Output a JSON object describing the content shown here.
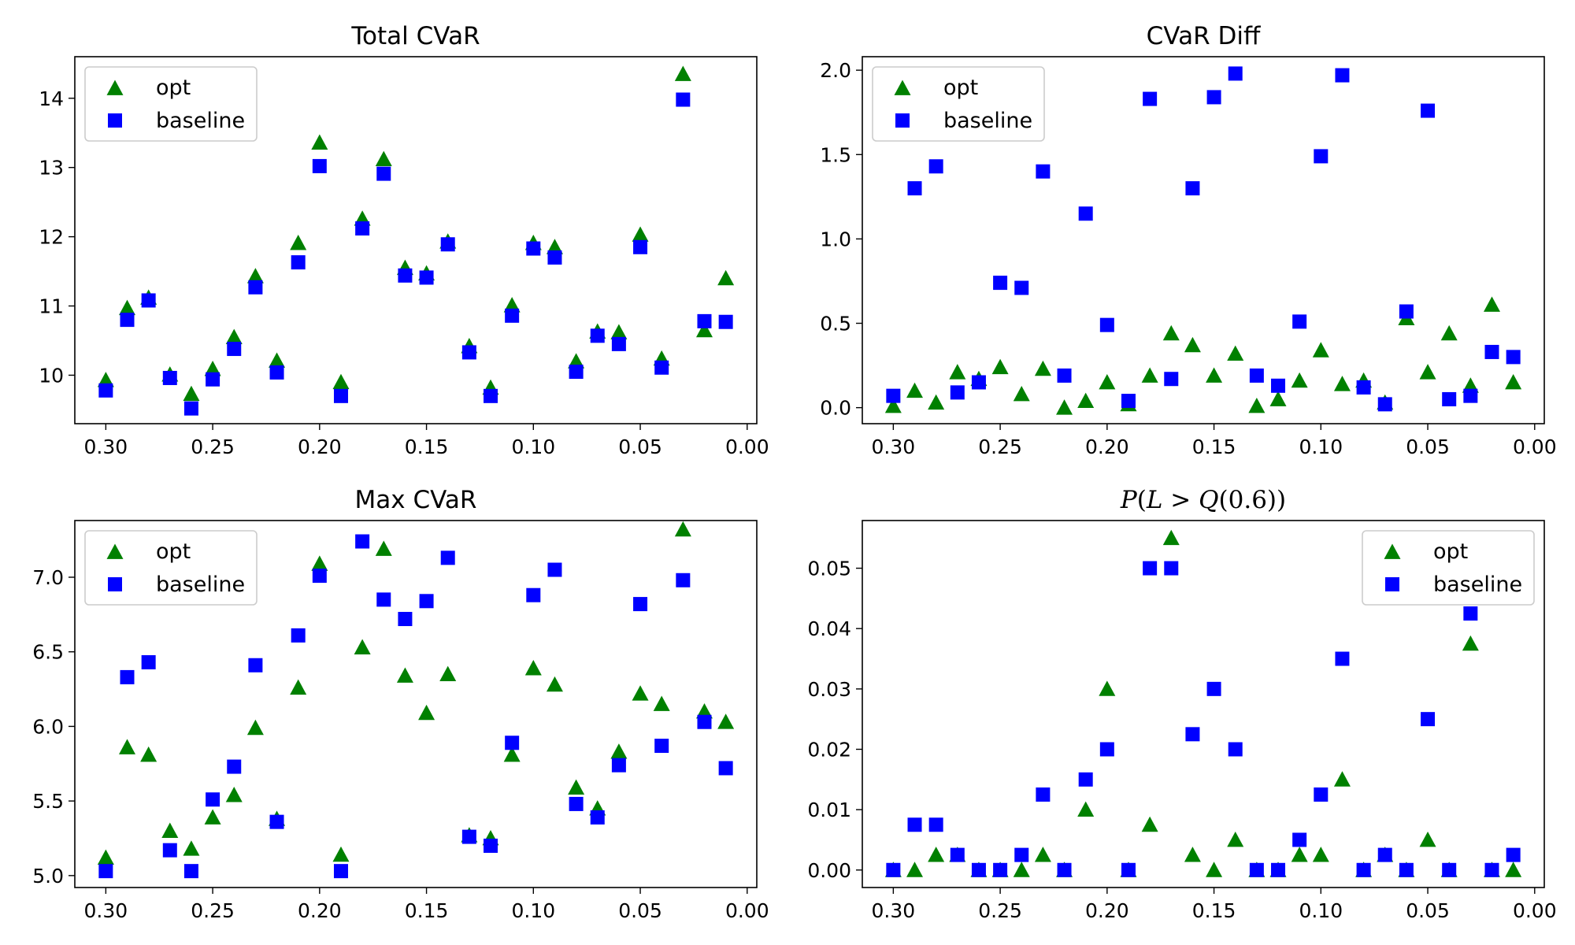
{
  "figure_title": "",
  "chart_data": [
    {
      "type": "scatter",
      "title": "Total CVaR",
      "title_math": false,
      "xlabel": "",
      "ylabel": "",
      "xlim": [
        0.3145,
        -0.0045
      ],
      "ylim": [
        9.3,
        14.6
      ],
      "x_ticks": [
        "0.30",
        "0.25",
        "0.20",
        "0.15",
        "0.10",
        "0.05",
        "0.00"
      ],
      "y_ticks": [
        "10",
        "11",
        "12",
        "13",
        "14"
      ],
      "legend": {
        "position": "upper left",
        "entries": [
          "opt",
          "baseline"
        ]
      },
      "grid": false,
      "series": [
        {
          "name": "opt",
          "marker": "triangle",
          "color": "#008000",
          "x": [
            0.3,
            0.29,
            0.28,
            0.27,
            0.26,
            0.25,
            0.24,
            0.23,
            0.22,
            0.21,
            0.2,
            0.19,
            0.18,
            0.17,
            0.16,
            0.15,
            0.14,
            0.13,
            0.12,
            0.11,
            0.1,
            0.09,
            0.08,
            0.07,
            0.06,
            0.05,
            0.04,
            0.03,
            0.02,
            0.01
          ],
          "y": [
            9.93,
            10.97,
            11.12,
            10.01,
            9.73,
            10.09,
            10.55,
            11.43,
            10.21,
            11.91,
            13.36,
            9.9,
            12.26,
            13.12,
            11.55,
            11.47,
            11.93,
            10.42,
            9.82,
            11.01,
            11.91,
            11.85,
            10.2,
            10.63,
            10.62,
            12.03,
            10.24,
            14.35,
            10.65,
            11.4
          ]
        },
        {
          "name": "baseline",
          "marker": "square",
          "color": "#0000ff",
          "x": [
            0.3,
            0.29,
            0.28,
            0.27,
            0.26,
            0.25,
            0.24,
            0.23,
            0.22,
            0.21,
            0.2,
            0.19,
            0.18,
            0.17,
            0.16,
            0.15,
            0.14,
            0.13,
            0.12,
            0.11,
            0.1,
            0.09,
            0.08,
            0.07,
            0.06,
            0.05,
            0.04,
            0.03,
            0.02,
            0.01
          ],
          "y": [
            9.78,
            10.8,
            11.08,
            9.96,
            9.52,
            9.94,
            10.38,
            11.27,
            10.04,
            11.63,
            13.02,
            9.7,
            12.12,
            12.91,
            11.44,
            11.41,
            11.89,
            10.33,
            9.7,
            10.86,
            11.83,
            11.7,
            10.05,
            10.57,
            10.45,
            11.85,
            10.11,
            13.98,
            10.78,
            10.77
          ]
        }
      ]
    },
    {
      "type": "scatter",
      "title": "CVaR Diff",
      "title_math": false,
      "xlabel": "",
      "ylabel": "",
      "xlim": [
        0.3145,
        -0.0045
      ],
      "ylim": [
        -0.095,
        2.08
      ],
      "x_ticks": [
        "0.30",
        "0.25",
        "0.20",
        "0.15",
        "0.10",
        "0.05",
        "0.00"
      ],
      "y_ticks": [
        "0.0",
        "0.5",
        "1.0",
        "1.5",
        "2.0"
      ],
      "legend": {
        "position": "upper left",
        "entries": [
          "opt",
          "baseline"
        ]
      },
      "grid": false,
      "series": [
        {
          "name": "opt",
          "marker": "triangle",
          "color": "#008000",
          "x": [
            0.3,
            0.29,
            0.28,
            0.27,
            0.26,
            0.25,
            0.24,
            0.23,
            0.22,
            0.21,
            0.2,
            0.19,
            0.18,
            0.17,
            0.16,
            0.15,
            0.14,
            0.13,
            0.12,
            0.11,
            0.1,
            0.09,
            0.08,
            0.07,
            0.06,
            0.05,
            0.04,
            0.03,
            0.02,
            0.01
          ],
          "y": [
            0.01,
            0.1,
            0.03,
            0.21,
            0.17,
            0.24,
            0.08,
            0.23,
            0.0,
            0.04,
            0.15,
            0.02,
            0.19,
            0.44,
            0.37,
            0.19,
            0.32,
            0.01,
            0.05,
            0.16,
            0.34,
            0.14,
            0.16,
            0.03,
            0.53,
            0.21,
            0.44,
            0.13,
            0.61,
            0.15
          ]
        },
        {
          "name": "baseline",
          "marker": "square",
          "color": "#0000ff",
          "x": [
            0.3,
            0.29,
            0.28,
            0.27,
            0.26,
            0.25,
            0.24,
            0.23,
            0.22,
            0.21,
            0.2,
            0.19,
            0.18,
            0.17,
            0.16,
            0.15,
            0.14,
            0.13,
            0.12,
            0.11,
            0.1,
            0.09,
            0.08,
            0.07,
            0.06,
            0.05,
            0.04,
            0.03,
            0.02,
            0.01
          ],
          "y": [
            0.07,
            1.3,
            1.43,
            0.09,
            0.15,
            0.74,
            0.71,
            1.4,
            0.19,
            1.15,
            0.49,
            0.04,
            1.83,
            0.17,
            1.3,
            1.84,
            1.98,
            0.19,
            0.13,
            0.51,
            1.49,
            1.97,
            0.12,
            0.02,
            0.57,
            1.76,
            0.05,
            0.07,
            0.33,
            0.3
          ]
        }
      ]
    },
    {
      "type": "scatter",
      "title": "Max CVaR",
      "title_math": false,
      "xlabel": "",
      "ylabel": "",
      "xlim": [
        0.3145,
        -0.0045
      ],
      "ylim": [
        4.92,
        7.38
      ],
      "x_ticks": [
        "0.30",
        "0.25",
        "0.20",
        "0.15",
        "0.10",
        "0.05",
        "0.00"
      ],
      "y_ticks": [
        "5.0",
        "5.5",
        "6.0",
        "6.5",
        "7.0"
      ],
      "legend": {
        "position": "upper left",
        "entries": [
          "opt",
          "baseline"
        ]
      },
      "grid": false,
      "series": [
        {
          "name": "opt",
          "marker": "triangle",
          "color": "#008000",
          "x": [
            0.3,
            0.29,
            0.28,
            0.27,
            0.26,
            0.25,
            0.24,
            0.23,
            0.22,
            0.21,
            0.2,
            0.19,
            0.18,
            0.17,
            0.16,
            0.15,
            0.14,
            0.13,
            0.12,
            0.11,
            0.1,
            0.09,
            0.08,
            0.07,
            0.06,
            0.05,
            0.04,
            0.03,
            0.02,
            0.01
          ],
          "y": [
            5.12,
            5.86,
            5.81,
            5.3,
            5.18,
            5.39,
            5.54,
            5.99,
            5.38,
            6.26,
            7.09,
            5.14,
            6.53,
            7.19,
            6.34,
            6.09,
            6.35,
            5.27,
            5.25,
            5.81,
            6.39,
            6.28,
            5.59,
            5.45,
            5.83,
            6.22,
            6.15,
            7.32,
            6.1,
            6.03
          ]
        },
        {
          "name": "baseline",
          "marker": "square",
          "color": "#0000ff",
          "x": [
            0.3,
            0.29,
            0.28,
            0.27,
            0.26,
            0.25,
            0.24,
            0.23,
            0.22,
            0.21,
            0.2,
            0.19,
            0.18,
            0.17,
            0.16,
            0.15,
            0.14,
            0.13,
            0.12,
            0.11,
            0.1,
            0.09,
            0.08,
            0.07,
            0.06,
            0.05,
            0.04,
            0.03,
            0.02,
            0.01
          ],
          "y": [
            5.03,
            6.33,
            6.43,
            5.17,
            5.03,
            5.51,
            5.73,
            6.41,
            5.36,
            6.61,
            7.01,
            5.03,
            7.24,
            6.85,
            6.72,
            6.84,
            7.13,
            5.26,
            5.2,
            5.89,
            6.88,
            7.05,
            5.48,
            5.39,
            5.74,
            6.82,
            5.87,
            6.98,
            6.03,
            5.72
          ]
        }
      ]
    },
    {
      "type": "scatter",
      "title": "P(L > Q(0.6))",
      "title_math": true,
      "xlabel": "",
      "ylabel": "",
      "xlim": [
        0.3145,
        -0.0045
      ],
      "ylim": [
        -0.0029,
        0.0579
      ],
      "x_ticks": [
        "0.30",
        "0.25",
        "0.20",
        "0.15",
        "0.10",
        "0.05",
        "0.00"
      ],
      "y_ticks": [
        "0.00",
        "0.01",
        "0.02",
        "0.03",
        "0.04",
        "0.05"
      ],
      "legend": {
        "position": "upper right",
        "entries": [
          "opt",
          "baseline"
        ]
      },
      "grid": false,
      "series": [
        {
          "name": "opt",
          "marker": "triangle",
          "color": "#008000",
          "x": [
            0.3,
            0.29,
            0.28,
            0.27,
            0.26,
            0.25,
            0.24,
            0.23,
            0.22,
            0.21,
            0.2,
            0.19,
            0.18,
            0.17,
            0.16,
            0.15,
            0.14,
            0.13,
            0.12,
            0.11,
            0.1,
            0.09,
            0.08,
            0.07,
            0.06,
            0.05,
            0.04,
            0.03,
            0.02,
            0.01
          ],
          "y": [
            0.0,
            0.0,
            0.0025,
            0.0025,
            0.0,
            0.0,
            0.0,
            0.0025,
            0.0,
            0.01,
            0.03,
            0.0,
            0.0075,
            0.055,
            0.0025,
            0.0,
            0.005,
            0.0,
            0.0,
            0.0025,
            0.0025,
            0.015,
            0.0,
            0.0025,
            0.0,
            0.005,
            0.0,
            0.0375,
            0.0,
            0.0
          ]
        },
        {
          "name": "baseline",
          "marker": "square",
          "color": "#0000ff",
          "x": [
            0.3,
            0.29,
            0.28,
            0.27,
            0.26,
            0.25,
            0.24,
            0.23,
            0.22,
            0.21,
            0.2,
            0.19,
            0.18,
            0.17,
            0.16,
            0.15,
            0.14,
            0.13,
            0.12,
            0.11,
            0.1,
            0.09,
            0.08,
            0.07,
            0.06,
            0.05,
            0.04,
            0.03,
            0.02,
            0.01
          ],
          "y": [
            0.0,
            0.0075,
            0.0075,
            0.0025,
            0.0,
            0.0,
            0.0025,
            0.0125,
            0.0,
            0.015,
            0.02,
            0.0,
            0.05,
            0.05,
            0.0225,
            0.03,
            0.02,
            0.0,
            0.0,
            0.005,
            0.0125,
            0.035,
            0.0,
            0.0025,
            0.0,
            0.025,
            0.0,
            0.0425,
            0.0,
            0.0025
          ]
        }
      ]
    }
  ]
}
